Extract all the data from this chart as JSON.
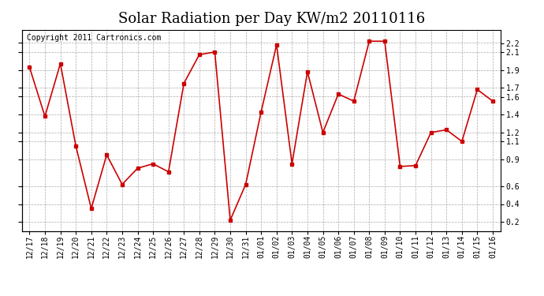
{
  "title": "Solar Radiation per Day KW/m2 20110116",
  "copyright": "Copyright 2011 Cartronics.com",
  "dates": [
    "12/17",
    "12/18",
    "12/19",
    "12/20",
    "12/21",
    "12/22",
    "12/23",
    "12/24",
    "12/25",
    "12/26",
    "12/27",
    "12/28",
    "12/29",
    "12/30",
    "12/31",
    "01/01",
    "01/02",
    "01/03",
    "01/04",
    "01/05",
    "01/06",
    "01/07",
    "01/08",
    "01/09",
    "01/10",
    "01/11",
    "01/12",
    "01/13",
    "01/14",
    "01/15",
    "01/16"
  ],
  "values": [
    1.93,
    1.38,
    1.97,
    1.05,
    0.35,
    0.95,
    0.62,
    0.8,
    0.85,
    0.76,
    1.75,
    2.07,
    2.1,
    0.22,
    0.62,
    1.43,
    2.18,
    0.85,
    1.88,
    1.2,
    1.63,
    1.55,
    2.22,
    2.22,
    0.82,
    0.83,
    1.2,
    1.23,
    1.1,
    1.68,
    1.55
  ],
  "ylim": [
    0.1,
    2.35
  ],
  "yticks": [
    0.2,
    0.4,
    0.6,
    0.9,
    1.1,
    1.2,
    1.4,
    1.6,
    1.7,
    1.9,
    2.1,
    2.2
  ],
  "ytick_labels": [
    "0.2",
    "0.4",
    "0.6",
    "0.9",
    "1.1",
    "1.2",
    "1.4",
    "1.6",
    "1.7",
    "1.9",
    "2.1",
    "2.2"
  ],
  "line_color": "#cc0000",
  "marker": "s",
  "marker_size": 3,
  "bg_color": "#ffffff",
  "grid_color": "#aaaaaa",
  "title_fontsize": 13,
  "copyright_fontsize": 7,
  "tick_fontsize": 7,
  "right_ytick_labels": [
    "0.2",
    "0.4",
    "0.6",
    "0.9",
    "1.1",
    "1.2",
    "1.4",
    "1.6",
    "1.7",
    "1.9",
    "2.1",
    "2.2"
  ]
}
